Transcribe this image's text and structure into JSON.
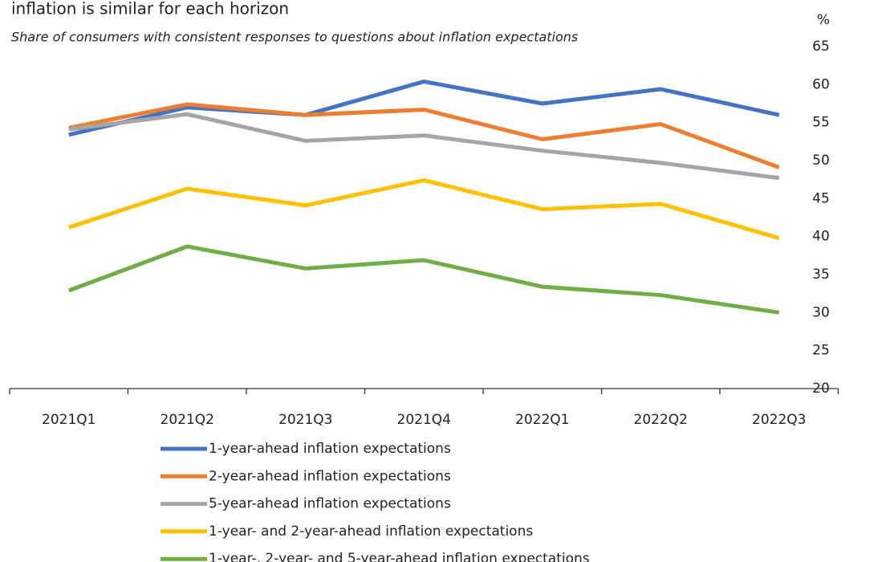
{
  "chart_data": {
    "type": "line",
    "title": "inflation is similar for each horizon",
    "subtitle": "Share of consumers with consistent responses to questions about inflation expectations",
    "y_label": "%",
    "categories": [
      "2021Q1",
      "2021Q2",
      "2021Q3",
      "2021Q4",
      "2022Q1",
      "2022Q2",
      "2022Q3"
    ],
    "series": [
      {
        "name": "1-year-ahead inflation expectations",
        "color": "#4472c4",
        "values": [
          53.4,
          57.0,
          56.0,
          60.4,
          57.5,
          59.4,
          56.0
        ]
      },
      {
        "name": "2-year-ahead inflation expectations",
        "color": "#ed7d31",
        "values": [
          54.3,
          57.4,
          56.0,
          56.7,
          52.8,
          54.8,
          49.1
        ]
      },
      {
        "name": "5-year-ahead inflation expectations",
        "color": "#a5a5a5",
        "values": [
          54.1,
          56.1,
          52.6,
          53.3,
          51.3,
          49.7,
          47.7
        ]
      },
      {
        "name": "1-year- and 2-year-ahead inflation expectations",
        "color": "#ffc000",
        "values": [
          41.2,
          46.3,
          44.1,
          47.4,
          43.6,
          44.3,
          39.8
        ]
      },
      {
        "name": "1-year-, 2-year- and 5-year-ahead inflation expectations",
        "color": "#70ad47",
        "values": [
          32.9,
          38.7,
          35.8,
          36.9,
          33.4,
          32.3,
          30.0
        ]
      }
    ],
    "ylim": [
      20,
      65
    ],
    "yticks": [
      20,
      25,
      30,
      35,
      40,
      45,
      50,
      55,
      60,
      65
    ],
    "y_axis_side": "right",
    "grid": false
  }
}
